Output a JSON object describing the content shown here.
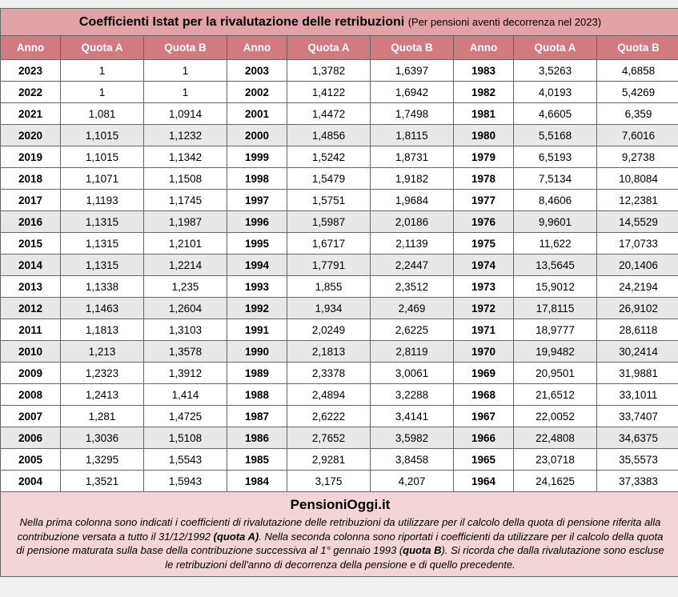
{
  "title": {
    "main": "Coefficienti Istat per la rivalutazione delle retribuzioni",
    "sub": "(Per pensioni aventi decorrenza nel 2023)"
  },
  "headers": {
    "anno": "Anno",
    "quotaA": "Quota A",
    "quotaB": "Quota B"
  },
  "columns": [
    {
      "rows": [
        {
          "anno": "2023",
          "a": "1",
          "b": "1",
          "shaded": false
        },
        {
          "anno": "2022",
          "a": "1",
          "b": "1",
          "shaded": false
        },
        {
          "anno": "2021",
          "a": "1,081",
          "b": "1,0914",
          "shaded": false
        },
        {
          "anno": "2020",
          "a": "1,1015",
          "b": "1,1232",
          "shaded": true
        },
        {
          "anno": "2019",
          "a": "1,1015",
          "b": "1,1342",
          "shaded": false
        },
        {
          "anno": "2018",
          "a": "1,1071",
          "b": "1,1508",
          "shaded": false
        },
        {
          "anno": "2017",
          "a": "1,1193",
          "b": "1,1745",
          "shaded": false
        },
        {
          "anno": "2016",
          "a": "1,1315",
          "b": "1,1987",
          "shaded": true
        },
        {
          "anno": "2015",
          "a": "1,1315",
          "b": "1,2101",
          "shaded": false
        },
        {
          "anno": "2014",
          "a": "1,1315",
          "b": "1,2214",
          "shaded": true
        },
        {
          "anno": "2013",
          "a": "1,1338",
          "b": "1,235",
          "shaded": false
        },
        {
          "anno": "2012",
          "a": "1,1463",
          "b": "1,2604",
          "shaded": true
        },
        {
          "anno": "2011",
          "a": "1,1813",
          "b": "1,3103",
          "shaded": false
        },
        {
          "anno": "2010",
          "a": "1,213",
          "b": "1,3578",
          "shaded": true
        },
        {
          "anno": "2009",
          "a": "1,2323",
          "b": "1,3912",
          "shaded": false
        },
        {
          "anno": "2008",
          "a": "1,2413",
          "b": "1,414",
          "shaded": false
        },
        {
          "anno": "2007",
          "a": "1,281",
          "b": "1,4725",
          "shaded": false
        },
        {
          "anno": "2006",
          "a": "1,3036",
          "b": "1,5108",
          "shaded": true
        },
        {
          "anno": "2005",
          "a": "1,3295",
          "b": "1,5543",
          "shaded": false
        },
        {
          "anno": "2004",
          "a": "1,3521",
          "b": "1,5943",
          "shaded": false
        }
      ]
    },
    {
      "rows": [
        {
          "anno": "2003",
          "a": "1,3782",
          "b": "1,6397",
          "shaded": false
        },
        {
          "anno": "2002",
          "a": "1,4122",
          "b": "1,6942",
          "shaded": false
        },
        {
          "anno": "2001",
          "a": "1,4472",
          "b": "1,7498",
          "shaded": false
        },
        {
          "anno": "2000",
          "a": "1,4856",
          "b": "1,8115",
          "shaded": true
        },
        {
          "anno": "1999",
          "a": "1,5242",
          "b": "1,8731",
          "shaded": false
        },
        {
          "anno": "1998",
          "a": "1,5479",
          "b": "1,9182",
          "shaded": false
        },
        {
          "anno": "1997",
          "a": "1,5751",
          "b": "1,9684",
          "shaded": false
        },
        {
          "anno": "1996",
          "a": "1,5987",
          "b": "2,0186",
          "shaded": true
        },
        {
          "anno": "1995",
          "a": "1,6717",
          "b": "2,1139",
          "shaded": false
        },
        {
          "anno": "1994",
          "a": "1,7791",
          "b": "2,2447",
          "shaded": true
        },
        {
          "anno": "1993",
          "a": "1,855",
          "b": "2,3512",
          "shaded": false
        },
        {
          "anno": "1992",
          "a": "1,934",
          "b": "2,469",
          "shaded": true
        },
        {
          "anno": "1991",
          "a": "2,0249",
          "b": "2,6225",
          "shaded": false
        },
        {
          "anno": "1990",
          "a": "2,1813",
          "b": "2,8119",
          "shaded": true
        },
        {
          "anno": "1989",
          "a": "2,3378",
          "b": "3,0061",
          "shaded": false
        },
        {
          "anno": "1988",
          "a": "2,4894",
          "b": "3,2288",
          "shaded": false
        },
        {
          "anno": "1987",
          "a": "2,6222",
          "b": "3,4141",
          "shaded": false
        },
        {
          "anno": "1986",
          "a": "2,7652",
          "b": "3,5982",
          "shaded": true
        },
        {
          "anno": "1985",
          "a": "2,9281",
          "b": "3,8458",
          "shaded": false
        },
        {
          "anno": "1984",
          "a": "3,175",
          "b": "4,207",
          "shaded": false
        }
      ]
    },
    {
      "rows": [
        {
          "anno": "1983",
          "a": "3,5263",
          "b": "4,6858",
          "shaded": false
        },
        {
          "anno": "1982",
          "a": "4,0193",
          "b": "5,4269",
          "shaded": false
        },
        {
          "anno": "1981",
          "a": "4,6605",
          "b": "6,359",
          "shaded": false
        },
        {
          "anno": "1980",
          "a": "5,5168",
          "b": "7,6016",
          "shaded": true
        },
        {
          "anno": "1979",
          "a": "6,5193",
          "b": "9,2738",
          "shaded": false
        },
        {
          "anno": "1978",
          "a": "7,5134",
          "b": "10,8084",
          "shaded": false
        },
        {
          "anno": "1977",
          "a": "8,4606",
          "b": "12,2381",
          "shaded": false
        },
        {
          "anno": "1976",
          "a": "9,9601",
          "b": "14,5529",
          "shaded": true
        },
        {
          "anno": "1975",
          "a": "11,622",
          "b": "17,0733",
          "shaded": false
        },
        {
          "anno": "1974",
          "a": "13,5645",
          "b": "20,1406",
          "shaded": true
        },
        {
          "anno": "1973",
          "a": "15,9012",
          "b": "24,2194",
          "shaded": false
        },
        {
          "anno": "1972",
          "a": "17,8115",
          "b": "26,9102",
          "shaded": true
        },
        {
          "anno": "1971",
          "a": "18,9777",
          "b": "28,6118",
          "shaded": false
        },
        {
          "anno": "1970",
          "a": "19,9482",
          "b": "30,2414",
          "shaded": true
        },
        {
          "anno": "1969",
          "a": "20,9501",
          "b": "31,9881",
          "shaded": false
        },
        {
          "anno": "1968",
          "a": "21,6512",
          "b": "33,1011",
          "shaded": false
        },
        {
          "anno": "1967",
          "a": "22,0052",
          "b": "33,7407",
          "shaded": false
        },
        {
          "anno": "1966",
          "a": "22,4808",
          "b": "34,6375",
          "shaded": true
        },
        {
          "anno": "1965",
          "a": "23,0718",
          "b": "35,5573",
          "shaded": false
        },
        {
          "anno": "1964",
          "a": "24,1625",
          "b": "37,3383",
          "shaded": false
        }
      ]
    }
  ],
  "footer": {
    "site": "PensioniOggi.it",
    "text1": "Nella prima colonna sono indicati i coefficienti di rivalutazione delle retribuzioni da utilizzare per il calcolo della quota di pensione riferita alla contribuzione versata a tutto il 31/12/1992 ",
    "bold1": "(quota A)",
    "text2": ". Nella seconda colonna sono riportati i coefficienti da utilizzare per il calcolo della quota di pensione maturata sulla base della contribuzione successiva al 1° gennaio 1993 (",
    "bold2": "quota B",
    "text3": "). Si ricorda che dalla rivalutazione sono escluse le retribuzioni dell'anno di decorrenza della pensione e di quello precedente."
  },
  "style": {
    "title_bg": "#e1a3a8",
    "header_bg": "#d17b80",
    "header_fg": "#ffffff",
    "footer_bg": "#f4d5d7",
    "shaded_bg": "#e8e8e8",
    "border": "#666666",
    "title_fontsize": 16,
    "header_fontsize": 13.5,
    "cell_fontsize": 13.5,
    "footer_site_fontsize": 17,
    "footer_desc_fontsize": 13,
    "col_anno_width": 75,
    "col_quota_width": 104
  }
}
